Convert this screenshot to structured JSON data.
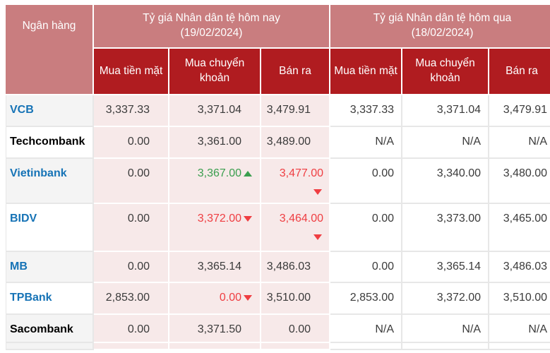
{
  "colors": {
    "header_rose": "#c97d7f",
    "header_dark_red": "#b01c20",
    "today_cell_pink": "#f7e9e9",
    "row_stripe_gray": "#f4f4f4",
    "bank_link_blue": "#1673b6",
    "value_up_green": "#3a9e4e",
    "value_down_red": "#ef3e42",
    "value_text": "#3b3b3b"
  },
  "table": {
    "bank_header": "Ngân hàng",
    "groups": [
      {
        "title": "Tỷ giá Nhân dân tệ hôm nay",
        "date": "(19/02/2024)"
      },
      {
        "title": "Tỷ giá Nhân dân tệ hôm qua",
        "date": "(18/02/2024)"
      }
    ],
    "sub_headers": [
      "Mua tiền mặt",
      "Mua chuyển khoản",
      "Bán ra",
      "Mua tiền mặt",
      "Mua chuyển khoản",
      "Bán ra"
    ],
    "rows": [
      {
        "name": "VCB",
        "link": true,
        "today": [
          {
            "value": "3,337.33",
            "color": "default",
            "arrow": null,
            "arrow_below": false
          },
          {
            "value": "3,371.04",
            "color": "default",
            "arrow": null,
            "arrow_below": false
          },
          {
            "value": "3,479.91",
            "color": "default",
            "arrow": null,
            "arrow_below": false
          }
        ],
        "yesterday": [
          "3,337.33",
          "3,371.04",
          "3,479.91"
        ]
      },
      {
        "name": "Techcombank",
        "link": false,
        "today": [
          {
            "value": "0.00",
            "color": "default",
            "arrow": null,
            "arrow_below": false
          },
          {
            "value": "3,361.00",
            "color": "default",
            "arrow": null,
            "arrow_below": false
          },
          {
            "value": "3,489.00",
            "color": "default",
            "arrow": null,
            "arrow_below": false
          }
        ],
        "yesterday": [
          "N/A",
          "N/A",
          "N/A"
        ]
      },
      {
        "name": "Vietinbank",
        "link": true,
        "today": [
          {
            "value": "0.00",
            "color": "default",
            "arrow": null,
            "arrow_below": false
          },
          {
            "value": "3,367.00",
            "color": "green",
            "arrow": "up",
            "arrow_below": false
          },
          {
            "value": "3,477.00",
            "color": "red",
            "arrow": "down",
            "arrow_below": true
          }
        ],
        "yesterday": [
          "0.00",
          "3,340.00",
          "3,480.00"
        ]
      },
      {
        "name": "BIDV",
        "link": true,
        "today": [
          {
            "value": "0.00",
            "color": "default",
            "arrow": null,
            "arrow_below": false
          },
          {
            "value": "3,372.00",
            "color": "red",
            "arrow": "down",
            "arrow_below": false
          },
          {
            "value": "3,464.00",
            "color": "red",
            "arrow": "down",
            "arrow_below": true
          }
        ],
        "yesterday": [
          "0.00",
          "3,373.00",
          "3,465.00"
        ]
      },
      {
        "name": "MB",
        "link": true,
        "today": [
          {
            "value": "0.00",
            "color": "default",
            "arrow": null,
            "arrow_below": false
          },
          {
            "value": "3,365.14",
            "color": "default",
            "arrow": null,
            "arrow_below": false
          },
          {
            "value": "3,486.03",
            "color": "default",
            "arrow": null,
            "arrow_below": false
          }
        ],
        "yesterday": [
          "0.00",
          "3,365.14",
          "3,486.03"
        ]
      },
      {
        "name": "TPBank",
        "link": true,
        "today": [
          {
            "value": "2,853.00",
            "color": "default",
            "arrow": null,
            "arrow_below": false
          },
          {
            "value": "0.00",
            "color": "red",
            "arrow": "down",
            "arrow_below": false
          },
          {
            "value": "3,510.00",
            "color": "default",
            "arrow": null,
            "arrow_below": false
          }
        ],
        "yesterday": [
          "2,853.00",
          "3,372.00",
          "3,510.00"
        ]
      },
      {
        "name": "Sacombank",
        "link": false,
        "today": [
          {
            "value": "0.00",
            "color": "default",
            "arrow": null,
            "arrow_below": false
          },
          {
            "value": "3,371.50",
            "color": "default",
            "arrow": null,
            "arrow_below": false
          },
          {
            "value": "0.00",
            "color": "default",
            "arrow": null,
            "arrow_below": false
          }
        ],
        "yesterday": [
          "N/A",
          "N/A",
          "N/A"
        ]
      }
    ]
  }
}
